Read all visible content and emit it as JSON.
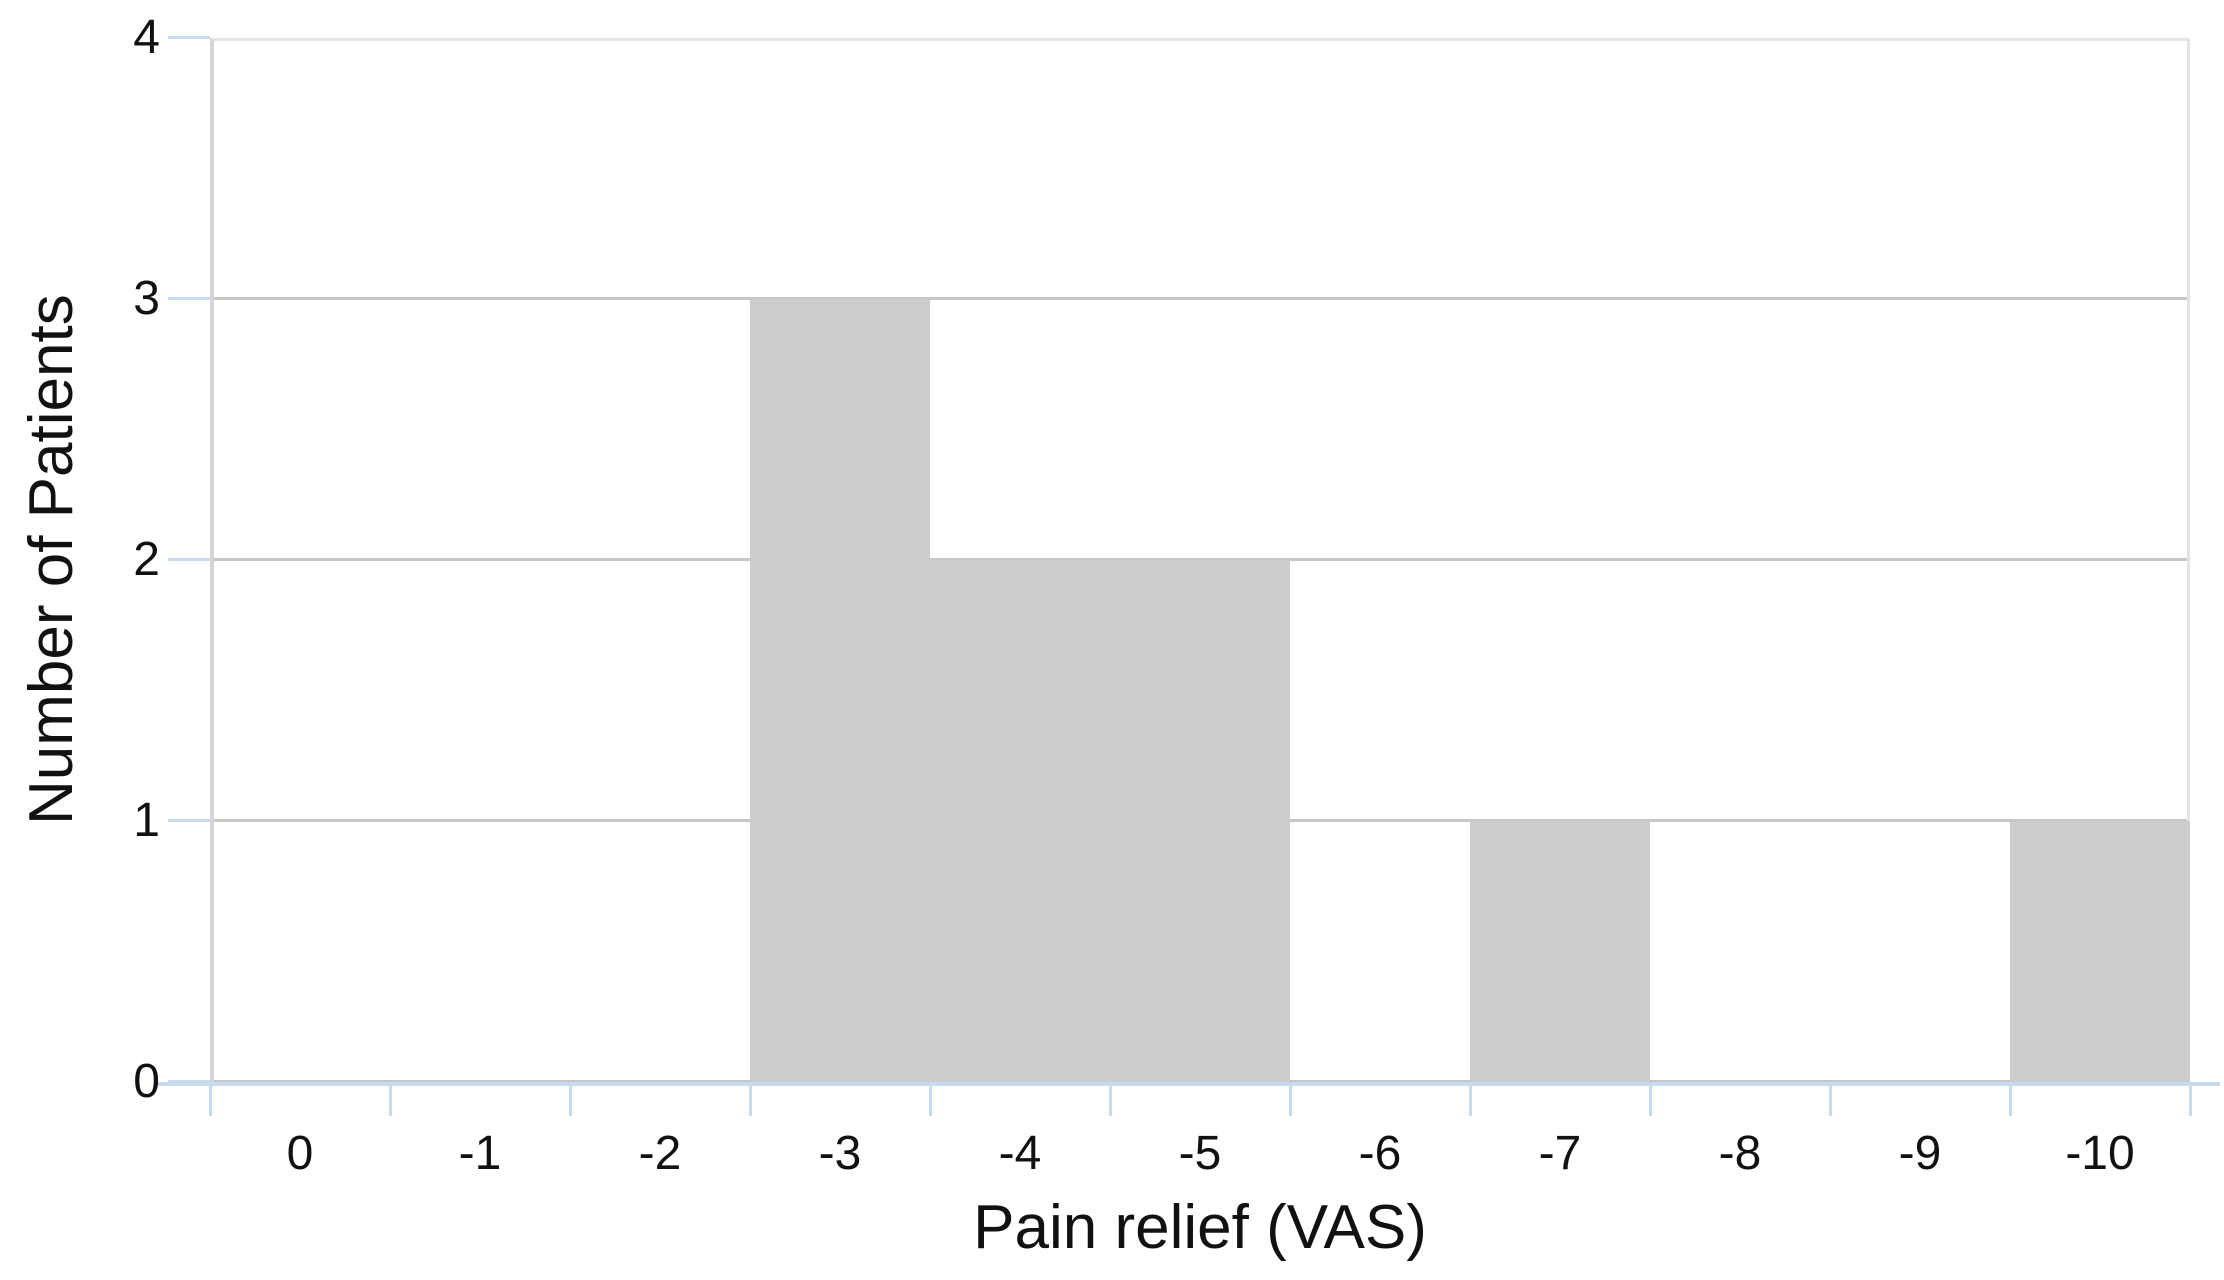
{
  "chart_data": {
    "type": "bar",
    "subtype": "histogram",
    "title": "",
    "xlabel": "Pain relief (VAS)",
    "ylabel": "Number of Patients",
    "categories": [
      "0",
      "-1",
      "-2",
      "-3",
      "-4",
      "-5",
      "-6",
      "-7",
      "-8",
      "-9",
      "-10"
    ],
    "values": [
      0,
      0,
      0,
      3,
      2,
      2,
      0,
      1,
      0,
      0,
      1
    ],
    "ylim": [
      0,
      4
    ],
    "yticks": [
      0,
      1,
      2,
      3,
      4
    ],
    "grid": true,
    "legend_position": "none",
    "bars_touch": true,
    "colors": {
      "bar": "#cccccc",
      "gridline": "#c6c6c6",
      "plot_border": "#e4e4e4",
      "y_axis_line": "#d5d5d5",
      "x_axis_line": "#c7daee",
      "tick": "#c7daee",
      "text": "#111111",
      "background": "#ffffff"
    }
  }
}
